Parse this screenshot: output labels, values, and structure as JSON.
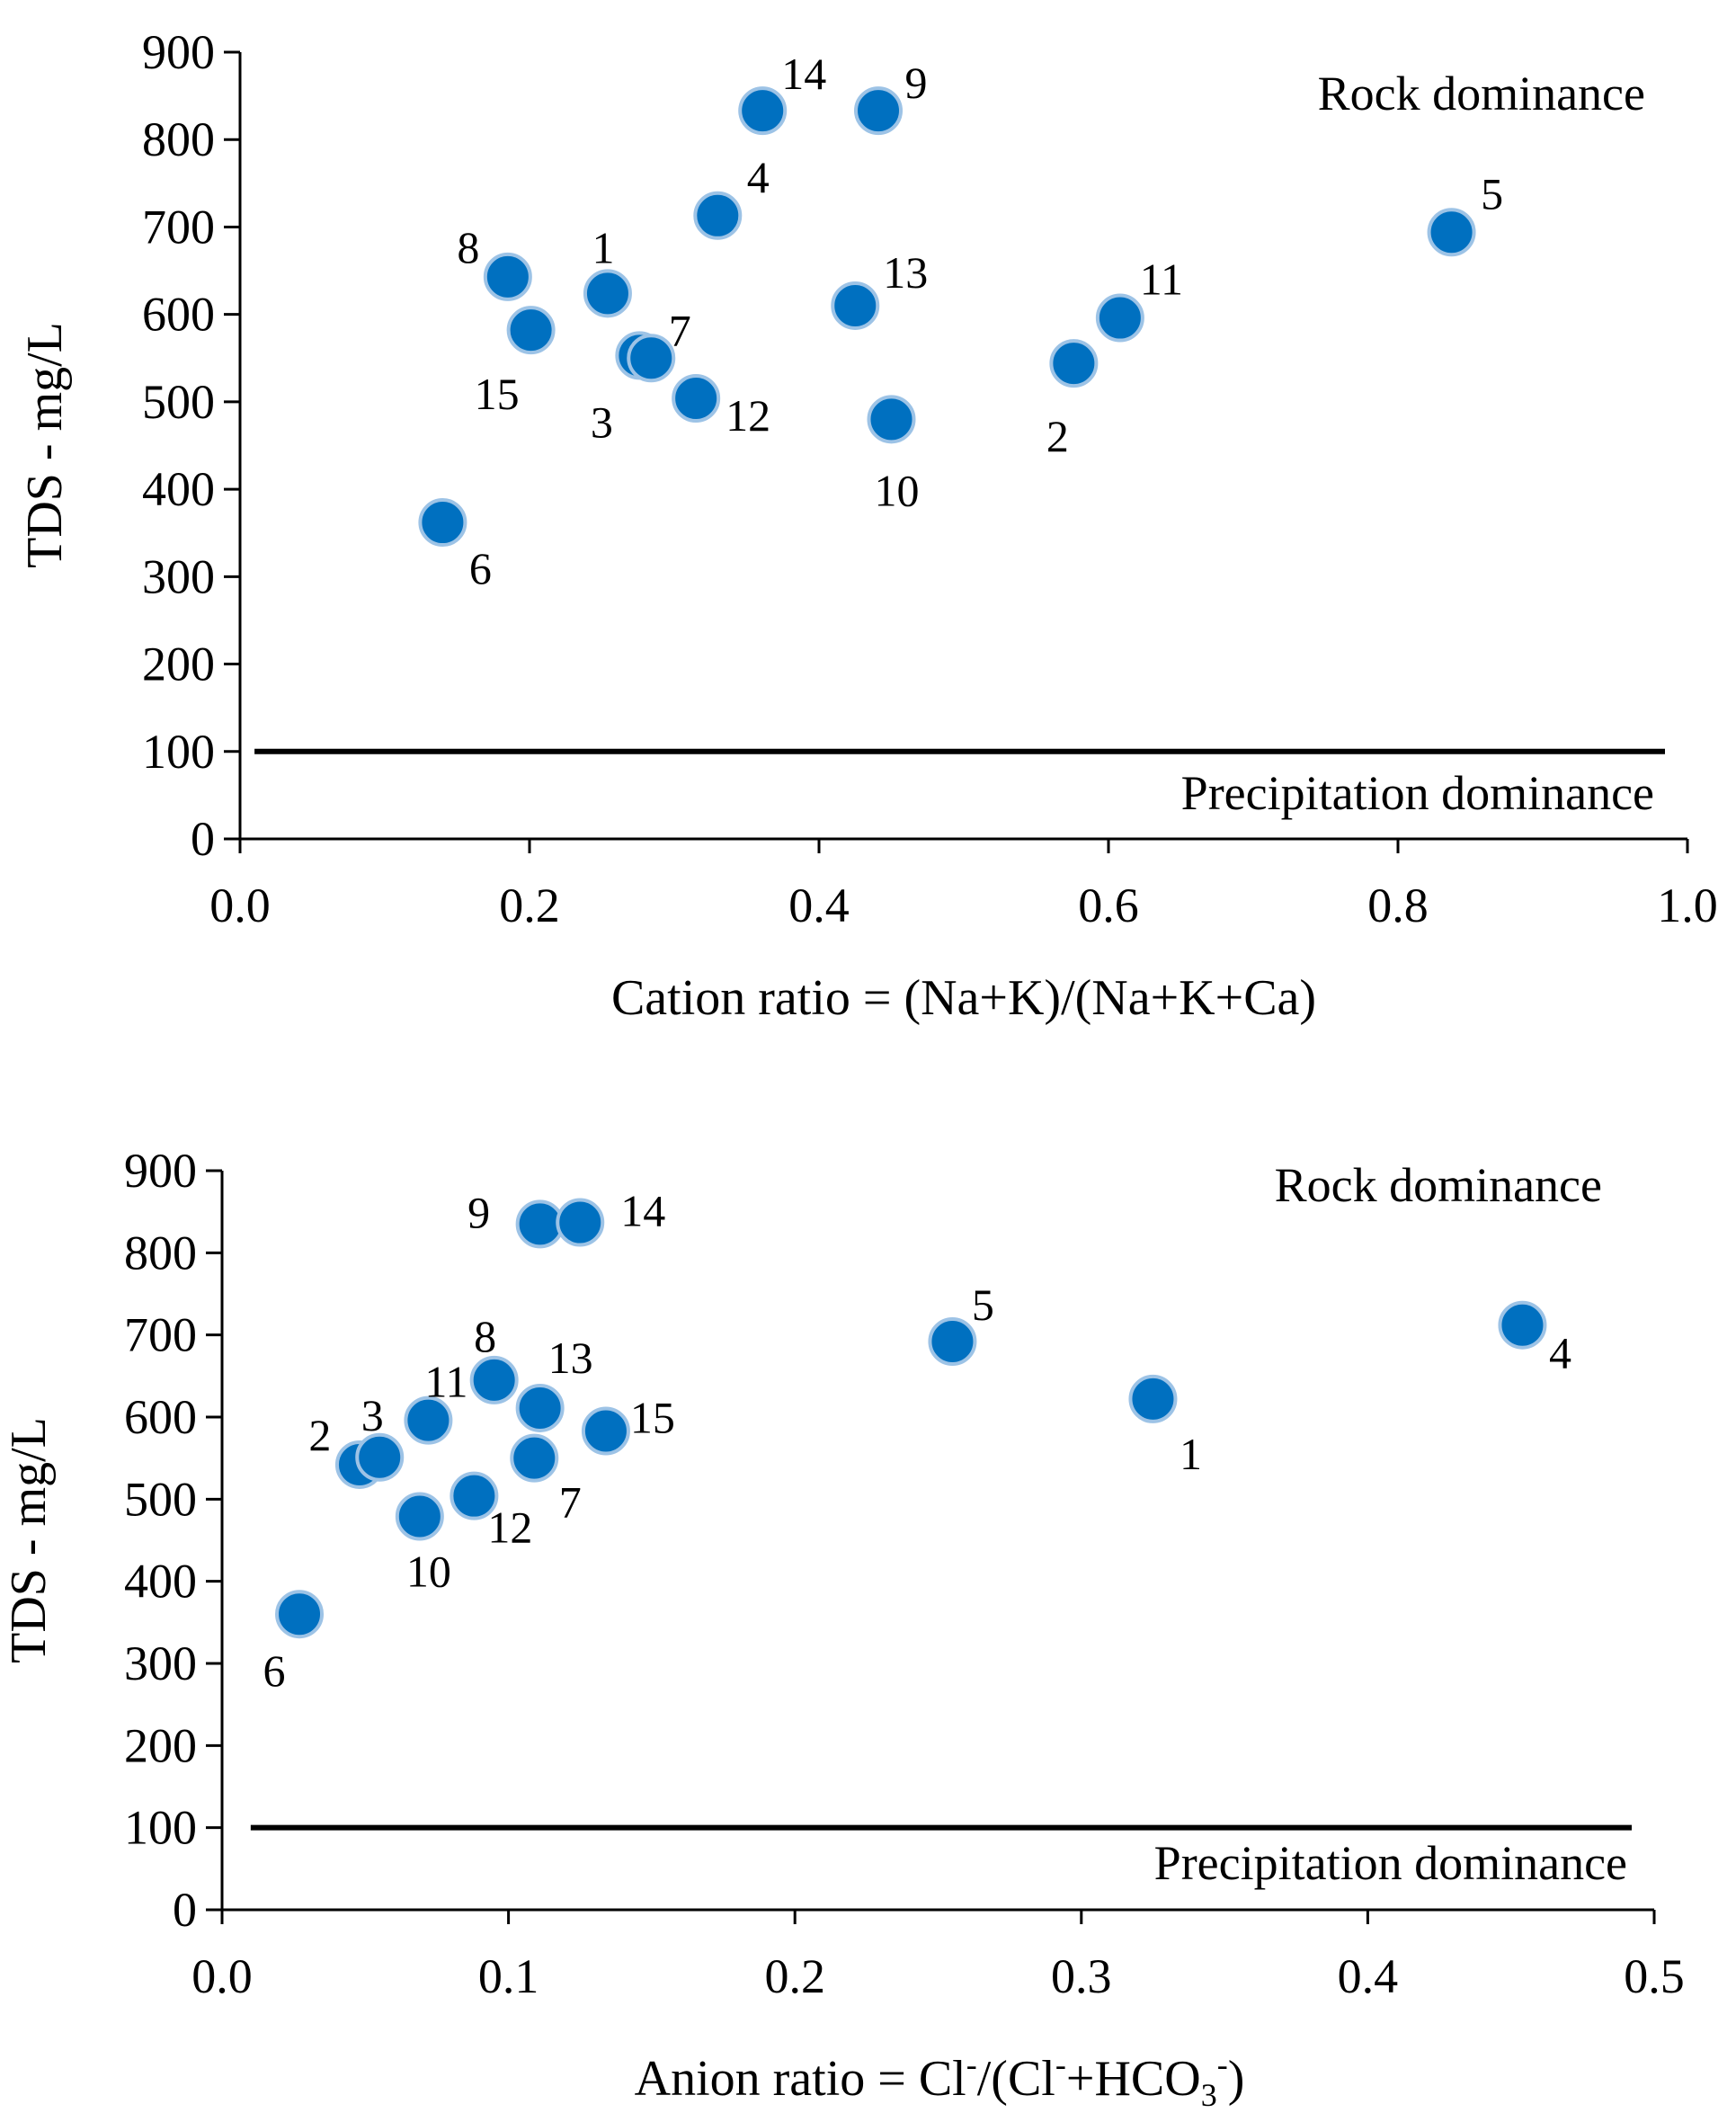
{
  "colors": {
    "marker_fill": "#0070c0",
    "marker_stroke": "#9dc3e6",
    "axis": "#000000",
    "threshold_line": "#000000"
  },
  "chart_data": [
    {
      "type": "scatter",
      "xlabel": "Cation ratio = (Na+K)/(Na+K+Ca)",
      "ylabel": "TDS - mg/L",
      "xlim": [
        0,
        1.0
      ],
      "ylim": [
        0,
        900
      ],
      "xticks": [
        "0.0",
        "0.2",
        "0.4",
        "0.6",
        "0.8",
        "1.0"
      ],
      "yticks": [
        "0",
        "100",
        "200",
        "300",
        "400",
        "500",
        "600",
        "700",
        "800",
        "900"
      ],
      "threshold": {
        "y": 100,
        "x_range": [
          0.01,
          1.0
        ]
      },
      "annotations": {
        "upper": "Rock dominance",
        "lower": "Precipitation dominance"
      },
      "points": [
        {
          "id": "1",
          "x": 0.254,
          "y": 624
        },
        {
          "id": "2",
          "x": 0.576,
          "y": 544
        },
        {
          "id": "3",
          "x": 0.276,
          "y": 553
        },
        {
          "id": "4",
          "x": 0.33,
          "y": 713
        },
        {
          "id": "5",
          "x": 0.837,
          "y": 694
        },
        {
          "id": "6",
          "x": 0.14,
          "y": 362
        },
        {
          "id": "7",
          "x": 0.284,
          "y": 550
        },
        {
          "id": "8",
          "x": 0.185,
          "y": 643
        },
        {
          "id": "9",
          "x": 0.441,
          "y": 833
        },
        {
          "id": "10",
          "x": 0.45,
          "y": 480
        },
        {
          "id": "11",
          "x": 0.608,
          "y": 596
        },
        {
          "id": "12",
          "x": 0.315,
          "y": 504
        },
        {
          "id": "13",
          "x": 0.425,
          "y": 610
        },
        {
          "id": "14",
          "x": 0.361,
          "y": 833
        },
        {
          "id": "15",
          "x": 0.201,
          "y": 582
        }
      ]
    },
    {
      "type": "scatter",
      "xlabel": "Anion ratio = Cl",
      "xlabel_parts": {
        "prefix": "Anion ratio = Cl",
        "sup1": "-",
        "mid": "/(Cl",
        "sup2": "-",
        "mid2": "+HCO",
        "sub": "3",
        "sup3": "-",
        "suffix": ")"
      },
      "ylabel": "TDS - mg/L",
      "xlim": [
        0,
        0.5
      ],
      "ylim": [
        0,
        900
      ],
      "xticks": [
        "0.0",
        "0.1",
        "0.2",
        "0.3",
        "0.4",
        "0.5"
      ],
      "yticks": [
        "0",
        "100",
        "200",
        "300",
        "400",
        "500",
        "600",
        "700",
        "800",
        "900"
      ],
      "threshold": {
        "y": 100,
        "x_range": [
          0.01,
          0.5
        ]
      },
      "annotations": {
        "upper": "Rock dominance",
        "lower": "Precipitation dominance"
      },
      "points": [
        {
          "id": "1",
          "x": 0.325,
          "y": 622
        },
        {
          "id": "2",
          "x": 0.048,
          "y": 542
        },
        {
          "id": "3",
          "x": 0.055,
          "y": 551
        },
        {
          "id": "4",
          "x": 0.454,
          "y": 712
        },
        {
          "id": "5",
          "x": 0.255,
          "y": 692
        },
        {
          "id": "6",
          "x": 0.027,
          "y": 360
        },
        {
          "id": "7",
          "x": 0.109,
          "y": 550
        },
        {
          "id": "8",
          "x": 0.095,
          "y": 645
        },
        {
          "id": "9",
          "x": 0.111,
          "y": 835
        },
        {
          "id": "10",
          "x": 0.069,
          "y": 479
        },
        {
          "id": "11",
          "x": 0.072,
          "y": 596
        },
        {
          "id": "12",
          "x": 0.088,
          "y": 504
        },
        {
          "id": "13",
          "x": 0.111,
          "y": 611
        },
        {
          "id": "14",
          "x": 0.125,
          "y": 837
        },
        {
          "id": "15",
          "x": 0.134,
          "y": 583
        }
      ]
    }
  ]
}
